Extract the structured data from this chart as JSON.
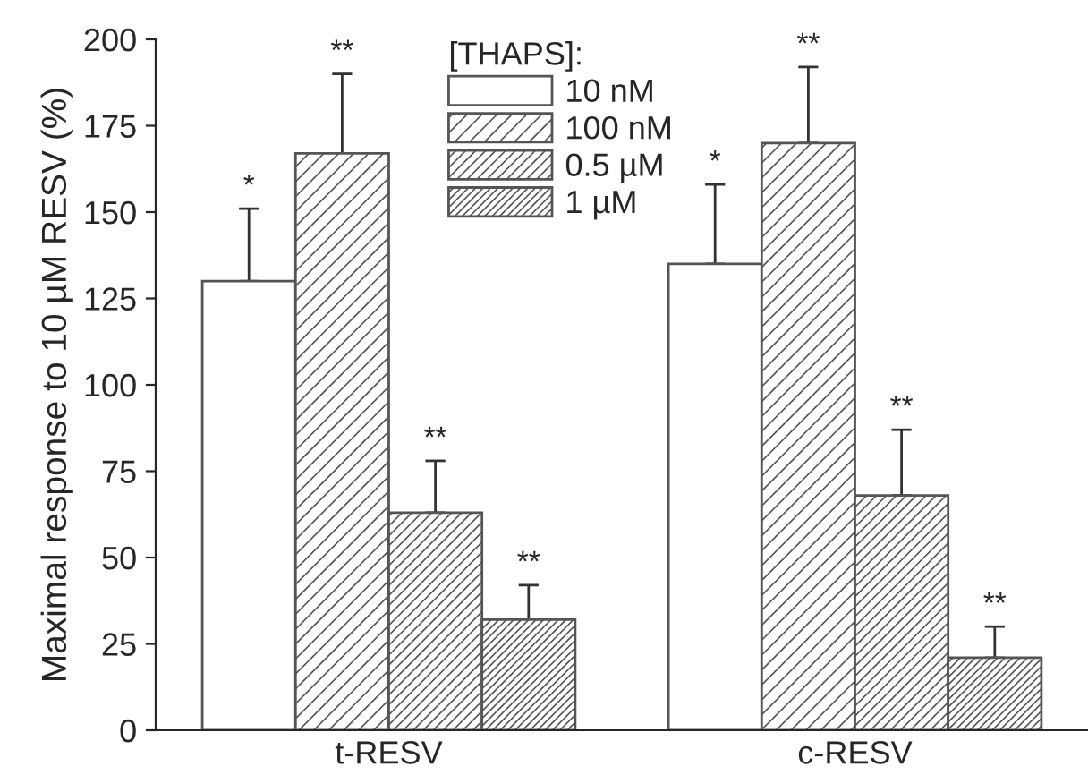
{
  "chart_data": {
    "type": "bar",
    "ylabel": "Maximal response to 10 µM RESV (%)",
    "legend_title": "[THAPS]:",
    "categories": [
      "t-RESV",
      "c-RESV"
    ],
    "series": [
      {
        "name": "10 nM",
        "color": "#ffffff",
        "values": [
          130,
          135
        ],
        "errors": [
          [
            130,
            151
          ],
          [
            135,
            158
          ]
        ]
      },
      {
        "name": "100 nM",
        "color": "#555555",
        "values": [
          167,
          170
        ],
        "errors": [
          [
            167,
            190
          ],
          [
            170,
            192
          ]
        ]
      },
      {
        "name": "0.5 µM",
        "color": "#555555",
        "values": [
          63,
          68
        ],
        "errors": [
          [
            63,
            78
          ],
          [
            68,
            87
          ]
        ]
      },
      {
        "name": "1 µM",
        "color": "#555555",
        "values": [
          32,
          21
        ],
        "errors": [
          [
            32,
            42
          ],
          [
            21,
            30
          ]
        ]
      }
    ],
    "annotations": [
      "*",
      "**",
      "**",
      "**",
      "*",
      "**",
      "**",
      "**"
    ],
    "ylim": [
      0,
      200
    ],
    "yticks": [
      0,
      25,
      50,
      75,
      100,
      125,
      150,
      175,
      200
    ],
    "grid": false,
    "legend": "top"
  }
}
